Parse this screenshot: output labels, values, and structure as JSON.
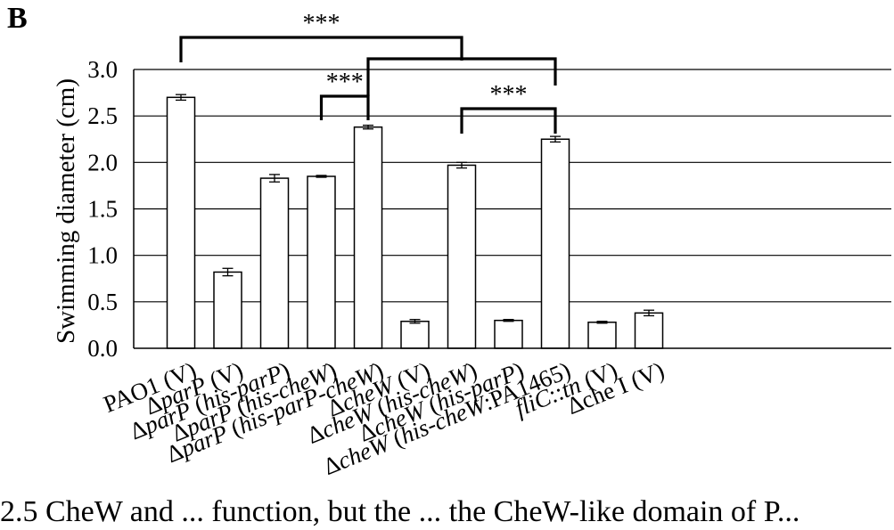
{
  "panel_label": "B",
  "caption_fragment": "2.5   CheW and ... function, but the ... the CheW-like domain of P...",
  "chart_data": {
    "type": "bar",
    "ylabel": "Swimming diameter (cm)",
    "xlabel": "",
    "ylim": [
      0,
      3.0
    ],
    "yticks": [
      "0.0",
      "0.5",
      "1.0",
      "1.5",
      "2.0",
      "2.5",
      "3.0"
    ],
    "grid": true,
    "categories": [
      "PAO1 (V)",
      "ΔparP (V)",
      "ΔparP (his-parP)",
      "ΔparP (his-cheW)",
      "ΔparP (his-parP-cheW)",
      "ΔcheW (V)",
      "ΔcheW (his-cheW)",
      "ΔcheW (his-parP)",
      "ΔcheW (his-cheW:PA1465)",
      "fliC::tn (V)",
      "Δche I (V)"
    ],
    "values": [
      2.7,
      0.82,
      1.83,
      1.85,
      2.38,
      0.29,
      1.97,
      0.3,
      2.25,
      0.28,
      0.38
    ],
    "errors": [
      0.03,
      0.04,
      0.04,
      0.01,
      0.02,
      0.02,
      0.03,
      0.01,
      0.03,
      0.01,
      0.03
    ],
    "significance": [
      {
        "from": 0,
        "to": 6,
        "label": "***"
      },
      {
        "from": 3,
        "to": 4,
        "label": "***"
      },
      {
        "from": 4,
        "to": 8,
        "label": "***"
      },
      {
        "from": 6,
        "to": 8,
        "label": "***"
      }
    ]
  }
}
